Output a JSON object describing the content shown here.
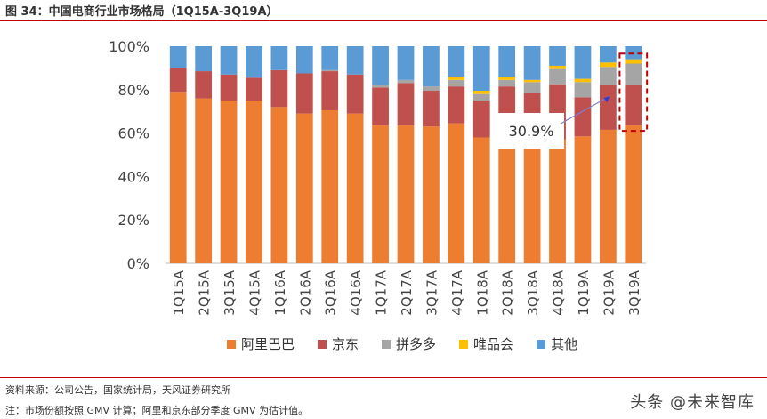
{
  "title": "图 34：中国电商行业市场格局（1Q15A-3Q19A）",
  "source": "资料来源：公司公告，国家统计局，天风证券研究所",
  "note": "注：市场份额按照 GMV 计算；阿里和京东部分季度 GMV 为估计值。",
  "watermark": "头条 @未来智库",
  "chart_data": {
    "type": "bar",
    "stacked": true,
    "categories": [
      "1Q15A",
      "2Q15A",
      "3Q15A",
      "4Q15A",
      "1Q16A",
      "2Q16A",
      "3Q16A",
      "4Q16A",
      "1Q17A",
      "2Q17A",
      "3Q17A",
      "4Q17A",
      "1Q18A",
      "2Q18A",
      "3Q18A",
      "4Q18A",
      "1Q19A",
      "2Q19A",
      "3Q19A"
    ],
    "ylim": [
      0,
      100
    ],
    "yticks": [
      "0%",
      "20%",
      "40%",
      "60%",
      "80%",
      "100%"
    ],
    "series": [
      {
        "name": "阿里巴巴",
        "color": "#ed7d31",
        "values": [
          79,
          76,
          75,
          75,
          72,
          69,
          70.5,
          69,
          63.5,
          63.5,
          63,
          64.5,
          58,
          57,
          55,
          57,
          58.5,
          61.5,
          63.5
        ]
      },
      {
        "name": "京东",
        "color": "#c0504d",
        "values": [
          11,
          12.5,
          12,
          10.5,
          17,
          18.5,
          18,
          18,
          17.5,
          19.5,
          16.5,
          17,
          17,
          24.5,
          23.5,
          25.5,
          18,
          20.5,
          18.5
        ]
      },
      {
        "name": "拼多多",
        "color": "#a5a5a5",
        "values": [
          0,
          0,
          0,
          0,
          0,
          0,
          0.5,
          0,
          1,
          1.5,
          2,
          3,
          3,
          3,
          5,
          7,
          7,
          8.5,
          10
        ]
      },
      {
        "name": "唯品会",
        "color": "#ffc000",
        "values": [
          0,
          0,
          0,
          0,
          0,
          0,
          0,
          0,
          0,
          0,
          0,
          1.5,
          1.5,
          1.5,
          1,
          1.5,
          1.5,
          2,
          2
        ]
      },
      {
        "name": "其他",
        "color": "#5b9bd5",
        "values": [
          10,
          11.5,
          13,
          14.5,
          11,
          12.5,
          11,
          13,
          18,
          15.5,
          18.5,
          14,
          20.5,
          14,
          15.5,
          9,
          15,
          7.5,
          6
        ]
      }
    ],
    "annotation": {
      "text": "30.9%",
      "highlight_category": "3Q19A"
    }
  }
}
